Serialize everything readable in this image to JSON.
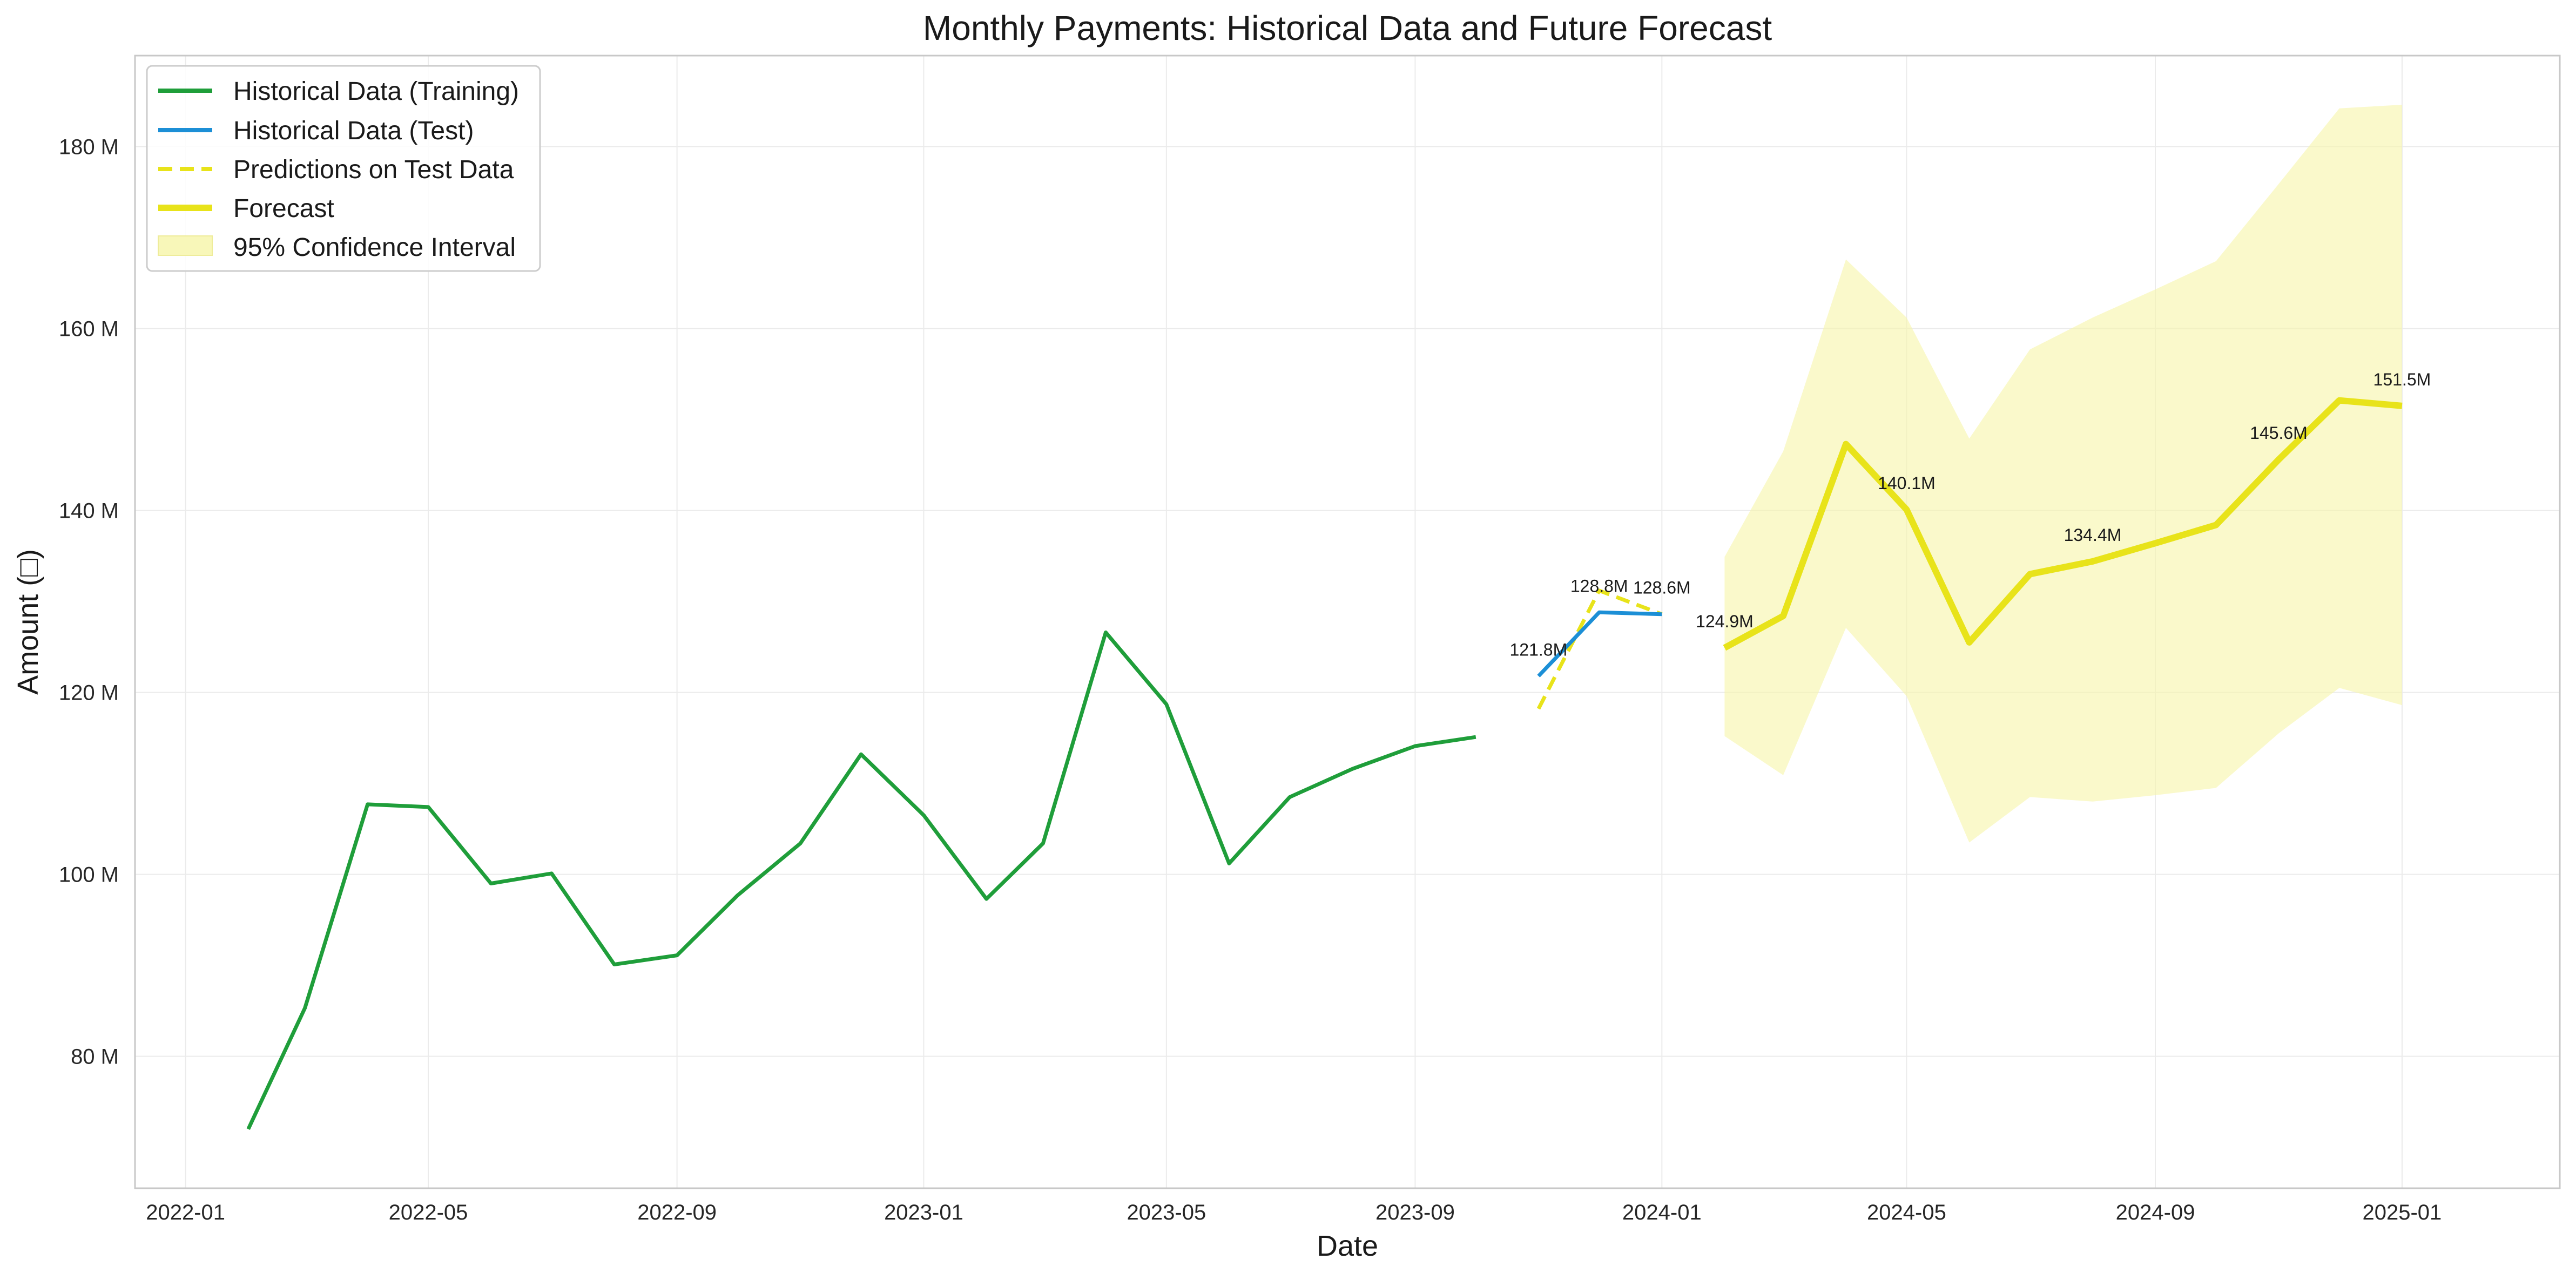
{
  "chart_data": {
    "type": "line",
    "title": "Monthly Payments: Historical Data and Future Forecast",
    "xlabel": "Date",
    "ylabel": "Amount (□)",
    "x_range": [
      "2021-12-07",
      "2025-03-20"
    ],
    "ylim": [
      65.5,
      190
    ],
    "x_ticks": [
      "2022-01-01",
      "2022-05-01",
      "2022-09-01",
      "2023-01-01",
      "2023-05-01",
      "2023-09-01",
      "2024-01-01",
      "2024-05-01",
      "2024-09-01",
      "2025-01-01"
    ],
    "x_tick_labels": [
      "2022-01",
      "2022-05",
      "2022-09",
      "2023-01",
      "2023-05",
      "2023-09",
      "2024-01",
      "2024-05",
      "2024-09",
      "2025-01"
    ],
    "y_ticks": [
      80,
      100,
      120,
      140,
      160,
      180
    ],
    "y_tick_labels": [
      "80 M",
      "100 M",
      "120 M",
      "140 M",
      "160 M",
      "180 M"
    ],
    "grid": true,
    "legend_position": "top-left",
    "colors": {
      "training": "#1f9e3a",
      "test": "#1c8fd6",
      "prediction": "#e8e31a",
      "forecast": "#e8e31a",
      "ci_fill": "#f6f5a8"
    },
    "series": [
      {
        "name": "Historical Data (Training)",
        "style": "solid",
        "x": [
          "2022-02-01",
          "2022-03-01",
          "2022-04-01",
          "2022-05-01",
          "2022-06-01",
          "2022-07-01",
          "2022-08-01",
          "2022-09-01",
          "2022-10-01",
          "2022-11-01",
          "2022-12-01",
          "2023-01-01",
          "2023-02-01",
          "2023-03-01",
          "2023-04-01",
          "2023-05-01",
          "2023-06-01",
          "2023-07-01",
          "2023-08-01",
          "2023-09-01",
          "2023-10-01"
        ],
        "y": [
          72,
          85.3,
          107.7,
          107.4,
          99,
          100.1,
          90.1,
          91.1,
          97.7,
          103.4,
          113.2,
          106.5,
          97.3,
          103.4,
          126.6,
          118.7,
          101.2,
          108.5,
          111.6,
          114.1,
          115.1
        ]
      },
      {
        "name": "Historical Data (Test)",
        "style": "solid",
        "x": [
          "2023-11-01",
          "2023-12-01",
          "2024-01-01"
        ],
        "y": [
          121.8,
          128.8,
          128.6
        ]
      },
      {
        "name": "Predictions on Test Data",
        "style": "dashed",
        "x": [
          "2023-11-01",
          "2023-12-01",
          "2024-01-01"
        ],
        "y": [
          118.2,
          131.2,
          128.6
        ]
      },
      {
        "name": "Forecast",
        "style": "solid-thick",
        "x": [
          "2024-02-01",
          "2024-03-01",
          "2024-04-01",
          "2024-05-01",
          "2024-06-01",
          "2024-07-01",
          "2024-08-01",
          "2024-09-01",
          "2024-10-01",
          "2024-11-01",
          "2024-12-01",
          "2025-01-01"
        ],
        "y": [
          124.9,
          128.4,
          147.3,
          140.1,
          125.5,
          133,
          134.4,
          136.4,
          138.4,
          145.6,
          152.1,
          151.5
        ]
      }
    ],
    "confidence_interval": {
      "name": "95% Confidence Interval",
      "x": [
        "2024-02-01",
        "2024-03-01",
        "2024-04-01",
        "2024-05-01",
        "2024-06-01",
        "2024-07-01",
        "2024-08-01",
        "2024-09-01",
        "2024-10-01",
        "2024-11-01",
        "2024-12-01",
        "2025-01-01"
      ],
      "lower": [
        115.2,
        110.9,
        127.1,
        119.6,
        103.5,
        108.5,
        108,
        108.7,
        109.5,
        115.5,
        120.5,
        118.6
      ],
      "upper": [
        134.9,
        146.5,
        167.6,
        161.2,
        147.9,
        157.7,
        161.2,
        164.3,
        167.4,
        175.9,
        184.2,
        184.6
      ]
    },
    "annotations": [
      {
        "x": "2023-11-01",
        "y": 121.8,
        "text": "121.8M"
      },
      {
        "x": "2023-12-01",
        "y": 128.8,
        "text": "128.8M"
      },
      {
        "x": "2024-01-01",
        "y": 128.6,
        "text": "128.6M"
      },
      {
        "x": "2024-02-01",
        "y": 124.9,
        "text": "124.9M"
      },
      {
        "x": "2024-05-01",
        "y": 140.1,
        "text": "140.1M"
      },
      {
        "x": "2024-08-01",
        "y": 134.4,
        "text": "134.4M"
      },
      {
        "x": "2024-11-01",
        "y": 145.6,
        "text": "145.6M"
      },
      {
        "x": "2025-01-01",
        "y": 151.5,
        "text": "151.5M"
      }
    ]
  }
}
